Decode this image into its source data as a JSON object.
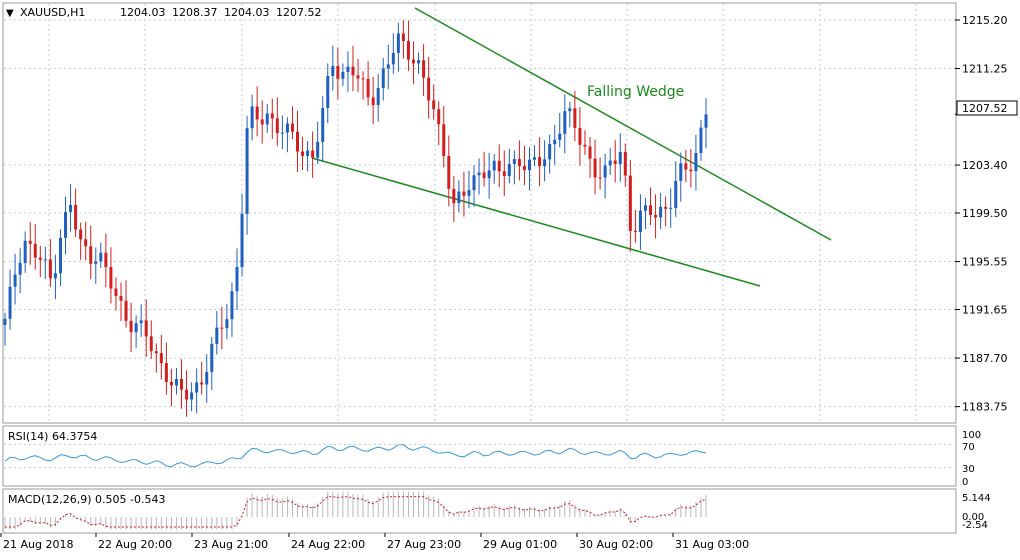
{
  "header": {
    "symbol": "XAUUSD,H1",
    "open": "1204.03",
    "high": "1208.37",
    "low": "1204.03",
    "close": "1207.52"
  },
  "colors": {
    "bull": "#1f5fbf",
    "bear": "#d41e1e",
    "trend": "#1a8a1a",
    "rsi": "#3a9ad9",
    "macd_hist": "#b8b8b8",
    "macd_signal": "#d41e1e",
    "grid": "#bfcddb",
    "price_tag_bg": "#ffffff"
  },
  "annotations": {
    "wedge_label": "Falling Wedge"
  },
  "rsi": {
    "label": "RSI(14) 64.3754",
    "levels": [
      "100",
      "70",
      "30",
      "0"
    ]
  },
  "macd": {
    "label": "MACD(12,26,9) 0.505 -0.543",
    "levels": [
      "5.144",
      "0.00",
      "-2.54"
    ]
  },
  "chart_data": {
    "type": "candlestick",
    "y_ticks": [
      "1215.20",
      "1211.25",
      "1207.52",
      "1203.40",
      "1199.50",
      "1195.55",
      "1191.65",
      "1187.70",
      "1183.75"
    ],
    "current_price": "1207.52",
    "x_ticks": [
      "21 Aug 2018",
      "22 Aug 20:00",
      "23 Aug 21:00",
      "24 Aug 22:00",
      "27 Aug 23:00",
      "29 Aug 01:00",
      "30 Aug 02:00",
      "31 Aug 03:00"
    ],
    "ylim": [
      1182.5,
      1216.5
    ],
    "close_path": [
      1190.5,
      1194.5,
      1197.5,
      1196.2,
      1195.5,
      1193.8,
      1198.2,
      1200.0,
      1197.0,
      1196.0,
      1196.5,
      1194.0,
      1192.5,
      1191.0,
      1190.5,
      1189.5,
      1188.0,
      1187.0,
      1185.5,
      1184.5,
      1185.0,
      1186.0,
      1188.0,
      1190.0,
      1191.8,
      1196.0,
      1207.3,
      1207.0,
      1207.8,
      1206.5,
      1206.0,
      1205.5,
      1204.5,
      1204.0,
      1207.5,
      1212.0,
      1210.8,
      1211.2,
      1210.0,
      1208.8,
      1210.0,
      1211.5,
      1213.6,
      1213.0,
      1212.0,
      1209.5,
      1207.5,
      1204.5,
      1200.0,
      1200.8,
      1202.0,
      1203.3,
      1203.0,
      1202.5,
      1203.5,
      1204.0,
      1203.0,
      1203.5,
      1204.5,
      1206.0,
      1207.5,
      1206.5,
      1205.0,
      1203.0,
      1202.0,
      1204.0,
      1205.0,
      1197.5,
      1199.0,
      1200.0,
      1199.8,
      1199.5,
      1202.5,
      1203.5,
      1204.5,
      1207.52
    ],
    "wedge_upper": {
      "from": [
        19,
        1215.5
      ],
      "to": [
        385,
        1196.8
      ]
    },
    "wedge_lower": {
      "from": [
        14,
        1203.5
      ],
      "to": [
        343,
        1193.0
      ]
    }
  }
}
